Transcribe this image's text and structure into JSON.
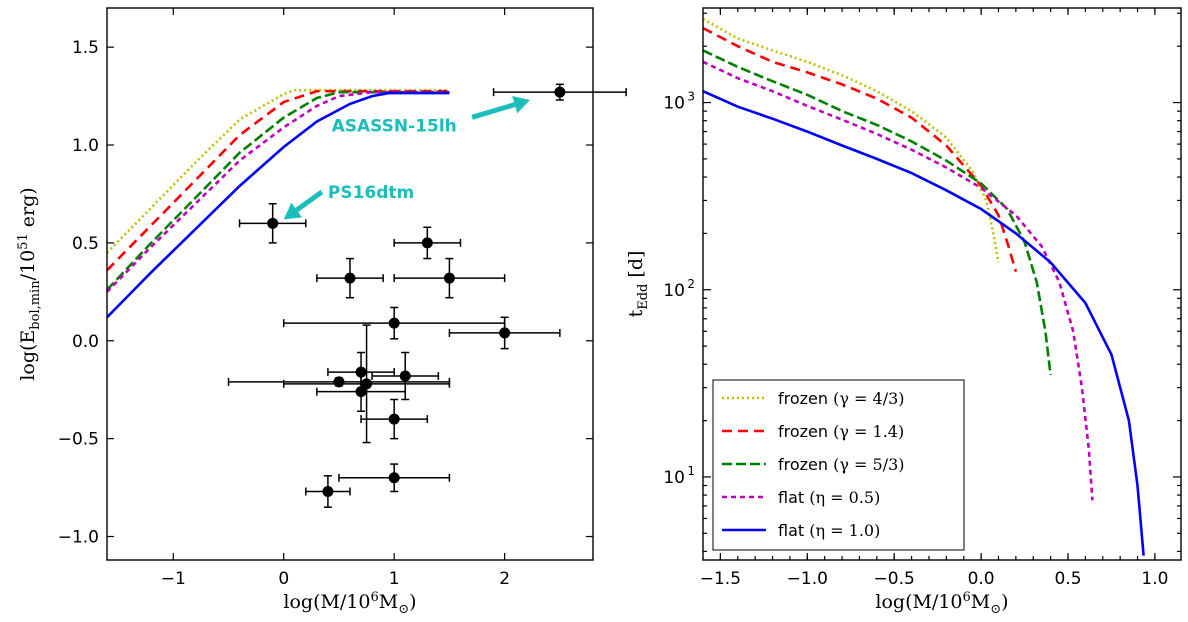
{
  "chart_data": [
    {
      "type": "line",
      "xlabel": "log(M/10⁶M⊙)",
      "ylabel": "log(Ebol,min/10⁵¹ erg)",
      "xlim": [
        -1.6,
        2.8
      ],
      "ylim": [
        -1.12,
        1.7
      ],
      "xticks": [
        -1,
        0,
        1,
        2
      ],
      "xtick_labels": [
        "−1",
        "0",
        "1",
        "2"
      ],
      "yticks": [
        -1.0,
        -0.5,
        0.0,
        0.5,
        1.0,
        1.5
      ],
      "ytick_labels": [
        "−1.0",
        "−0.5",
        "0.0",
        "0.5",
        "1.0",
        "1.5"
      ],
      "series": [
        {
          "style": "frozen-4/3",
          "x": [
            -1.6,
            -1.2,
            -0.8,
            -0.4,
            0.0,
            0.1,
            0.5,
            1.0,
            1.5
          ],
          "y": [
            0.45,
            0.68,
            0.91,
            1.13,
            1.26,
            1.28,
            1.28,
            1.28,
            1.28
          ]
        },
        {
          "style": "frozen-1.4",
          "x": [
            -1.6,
            -1.2,
            -0.8,
            -0.4,
            0.0,
            0.3,
            0.5,
            1.0,
            1.5
          ],
          "y": [
            0.36,
            0.59,
            0.82,
            1.05,
            1.22,
            1.275,
            1.275,
            1.275,
            1.275
          ]
        },
        {
          "style": "frozen-5/3",
          "x": [
            -1.6,
            -1.2,
            -0.8,
            -0.4,
            0.0,
            0.3,
            0.5,
            0.7,
            1.0,
            1.5
          ],
          "y": [
            0.26,
            0.5,
            0.73,
            0.96,
            1.14,
            1.24,
            1.27,
            1.27,
            1.27,
            1.27
          ]
        },
        {
          "style": "flat-0.5",
          "x": [
            -1.6,
            -1.2,
            -0.8,
            -0.4,
            0.0,
            0.3,
            0.5,
            0.8,
            1.0,
            1.5
          ],
          "y": [
            0.25,
            0.48,
            0.7,
            0.92,
            1.09,
            1.2,
            1.25,
            1.27,
            1.27,
            1.27
          ]
        },
        {
          "style": "flat-1.0",
          "x": [
            -1.6,
            -1.2,
            -0.8,
            -0.4,
            0.0,
            0.3,
            0.6,
            0.8,
            0.95,
            1.5
          ],
          "y": [
            0.12,
            0.35,
            0.57,
            0.79,
            0.99,
            1.12,
            1.21,
            1.25,
            1.265,
            1.265
          ]
        }
      ],
      "points": [
        {
          "x": -0.1,
          "y": 0.6,
          "xerr": 0.3,
          "yerr": 0.1
        },
        {
          "x": 2.5,
          "y": 1.27,
          "xerr": 0.6,
          "yerr": 0.04
        },
        {
          "x": 1.3,
          "y": 0.5,
          "xerr": 0.3,
          "yerr": 0.08
        },
        {
          "x": 0.6,
          "y": 0.32,
          "xerr": 0.3,
          "yerr": 0.1
        },
        {
          "x": 1.5,
          "y": 0.32,
          "xerr": 0.5,
          "yerr": 0.1
        },
        {
          "x": 1.0,
          "y": 0.09,
          "xerr": 1.0,
          "yerr": 0.08
        },
        {
          "x": 2.0,
          "y": 0.04,
          "xerr": 0.5,
          "yerr": 0.08
        },
        {
          "x": 0.5,
          "y": -0.21,
          "xerr": 1.0,
          "yerr": 0.02
        },
        {
          "x": 0.7,
          "y": -0.16,
          "xerr": 0.3,
          "yerr": 0.1
        },
        {
          "x": 0.75,
          "y": -0.22,
          "xerr": 0.75,
          "yerr": 0.3
        },
        {
          "x": 0.7,
          "y": -0.26,
          "xerr": 0.4,
          "yerr": 0.1
        },
        {
          "x": 1.1,
          "y": -0.18,
          "xerr": 0.3,
          "yerr": 0.12
        },
        {
          "x": 1.0,
          "y": -0.4,
          "xerr": 0.3,
          "yerr": 0.1
        },
        {
          "x": 1.0,
          "y": -0.7,
          "xerr": 0.5,
          "yerr": 0.07
        },
        {
          "x": 0.4,
          "y": -0.77,
          "xerr": 0.2,
          "yerr": 0.08
        }
      ],
      "annotations": [
        {
          "text": "ASASSN-15lh",
          "tx": 1.0,
          "ty": 1.07,
          "ax": 2.23,
          "ay": 1.23
        },
        {
          "text": "PS16dtm",
          "tx": 0.4,
          "ty": 0.73,
          "ax": 0.0,
          "ay": 0.62
        }
      ]
    },
    {
      "type": "line",
      "xlabel": "log(M/10⁶M⊙)",
      "ylabel": "tEdd [d]",
      "yscale": "log",
      "xlim": [
        -1.6,
        1.15
      ],
      "ylim": [
        3.6,
        3200
      ],
      "xticks": [
        -1.5,
        -1.0,
        -0.5,
        0.0,
        0.5,
        1.0
      ],
      "xtick_labels": [
        "−1.5",
        "−1.0",
        "−0.5",
        "0.0",
        "0.5",
        "1.0"
      ],
      "yticks": [
        10,
        100,
        1000
      ],
      "ytick_labels": [
        "10",
        "10",
        "10"
      ],
      "ytick_exps": [
        "1",
        "2",
        "3"
      ],
      "legend_position": "lower-left",
      "series": [
        {
          "style": "frozen-4/3",
          "name_text": "frozen",
          "name_math": "(γ = 4/3)",
          "x": [
            -1.6,
            -1.4,
            -1.2,
            -1.0,
            -0.8,
            -0.6,
            -0.4,
            -0.2,
            -0.05,
            0.03,
            0.07,
            0.1
          ],
          "y": [
            2800,
            2200,
            1900,
            1650,
            1400,
            1150,
            900,
            650,
            430,
            300,
            200,
            140
          ]
        },
        {
          "style": "frozen-1.4",
          "name_text": "frozen",
          "name_math": "(γ = 1.4)",
          "x": [
            -1.6,
            -1.4,
            -1.2,
            -1.0,
            -0.8,
            -0.6,
            -0.4,
            -0.2,
            0.0,
            0.1,
            0.15,
            0.2
          ],
          "y": [
            2500,
            2000,
            1650,
            1450,
            1250,
            1050,
            830,
            590,
            360,
            250,
            180,
            125
          ]
        },
        {
          "style": "frozen-5/3",
          "name_text": "frozen",
          "name_math": "(γ = 5/3)",
          "x": [
            -1.6,
            -1.4,
            -1.2,
            -1.0,
            -0.8,
            -0.6,
            -0.4,
            -0.2,
            0.0,
            0.15,
            0.25,
            0.32,
            0.37,
            0.4
          ],
          "y": [
            1900,
            1550,
            1300,
            1100,
            900,
            760,
            620,
            490,
            370,
            270,
            180,
            110,
            60,
            35
          ]
        },
        {
          "style": "flat-0.5",
          "name_text": "flat",
          "name_math": "(η = 0.5)",
          "x": [
            -1.6,
            -1.4,
            -1.2,
            -1.0,
            -0.8,
            -0.6,
            -0.4,
            -0.2,
            0.0,
            0.2,
            0.35,
            0.45,
            0.53,
            0.58,
            0.62,
            0.64
          ],
          "y": [
            1650,
            1350,
            1150,
            960,
            810,
            680,
            560,
            450,
            350,
            250,
            170,
            110,
            60,
            30,
            14,
            7.5
          ]
        },
        {
          "style": "flat-1.0",
          "name_text": "flat",
          "name_math": "(η = 1.0)",
          "x": [
            -1.6,
            -1.4,
            -1.2,
            -1.0,
            -0.8,
            -0.6,
            -0.4,
            -0.2,
            0.0,
            0.2,
            0.4,
            0.6,
            0.75,
            0.85,
            0.9,
            0.92,
            0.935
          ],
          "y": [
            1150,
            950,
            820,
            700,
            590,
            500,
            420,
            340,
            270,
            200,
            140,
            85,
            45,
            20,
            9,
            5.5,
            3.8
          ]
        }
      ]
    }
  ],
  "styles": {
    "frozen-4/3": {
      "color": "#bfbf00",
      "dash": "2,3"
    },
    "frozen-1.4": {
      "color": "#ff0000",
      "dash": "10,6"
    },
    "frozen-5/3": {
      "color": "#008000",
      "dash": "10,4"
    },
    "flat-0.5": {
      "color": "#bf00bf",
      "dash": "5,4"
    },
    "flat-1.0": {
      "color": "#0000ff",
      "dash": ""
    }
  }
}
